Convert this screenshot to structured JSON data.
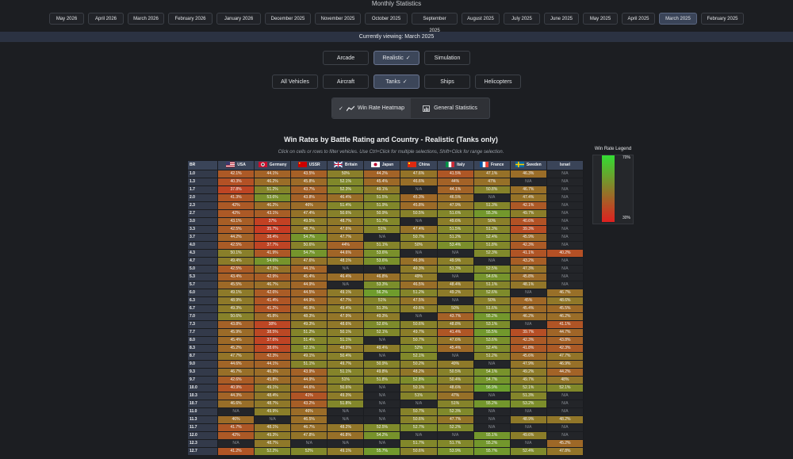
{
  "header": {
    "title": "Monthly Statistics",
    "viewing": "Currently viewing: March 2025"
  },
  "months": [
    "May 2026",
    "April 2026",
    "March 2026",
    "February 2026",
    "January 2026",
    "December 2025",
    "November 2025",
    "October 2025",
    "September 2025",
    "August 2025",
    "July 2025",
    "June 2025",
    "May 2025",
    "April 2025",
    "March 2025",
    "February 2025"
  ],
  "selected_month": "March 2025",
  "modes": [
    {
      "label": "Arcade",
      "active": false
    },
    {
      "label": "Realistic",
      "active": true
    },
    {
      "label": "Simulation",
      "active": false
    }
  ],
  "vehicles": [
    {
      "label": "All Vehicles",
      "active": false
    },
    {
      "label": "Aircraft",
      "active": false
    },
    {
      "label": "Tanks",
      "active": true
    },
    {
      "label": "Ships",
      "active": false
    },
    {
      "label": "Helicopters",
      "active": false
    }
  ],
  "views": [
    {
      "label": "Win Rate Heatmap",
      "active": true,
      "icon": "trend-line-icon"
    },
    {
      "label": "General Statistics",
      "active": false,
      "icon": "bar-chart-icon"
    }
  ],
  "chart": {
    "title": "Win Rates by Battle Rating and Country - Realistic (Tanks only)",
    "subtitle": "Click on cells or rows to filter vehicles. Use Ctrl+Click for multiple selections, Shift+Click for range selection."
  },
  "legend": {
    "title": "Win Rate Legend",
    "max_label": "70%",
    "min_label": "30%",
    "high_color": "#33dd33",
    "low_color": "#e02020"
  },
  "table": {
    "br_header": "BR",
    "countries": [
      {
        "name": "USA",
        "flag": "flag-usa-icon"
      },
      {
        "name": "Germany",
        "flag": "flag-germany-icon"
      },
      {
        "name": "USSR",
        "flag": "flag-ussr-icon"
      },
      {
        "name": "Britain",
        "flag": "flag-britain-icon"
      },
      {
        "name": "Japan",
        "flag": "flag-japan-icon"
      },
      {
        "name": "China",
        "flag": "flag-china-icon"
      },
      {
        "name": "Italy",
        "flag": "flag-italy-icon"
      },
      {
        "name": "France",
        "flag": "flag-france-icon"
      },
      {
        "name": "Sweden",
        "flag": "flag-sweden-icon"
      },
      {
        "name": "Israel",
        "flag": "flag-israel-icon"
      }
    ],
    "rows": [
      {
        "br": "1.0",
        "v": [
          "42.1%",
          "44.1%",
          "43.5%",
          "50%",
          "44.2%",
          "47.6%",
          "41.5%",
          "47.1%",
          "46.3%",
          "N/A"
        ]
      },
      {
        "br": "1.3",
        "v": [
          "40.3%",
          "46.2%",
          "45.8%",
          "52.1%",
          "45.4%",
          "46.6%",
          "44%",
          "47%",
          "N/A",
          "N/A"
        ]
      },
      {
        "br": "1.7",
        "v": [
          "37.8%",
          "51.2%",
          "43.7%",
          "52.3%",
          "49.1%",
          "N/A",
          "44.1%",
          "50.8%",
          "46.7%",
          "N/A"
        ]
      },
      {
        "br": "2.0",
        "v": [
          "41.3%",
          "53.6%",
          "43.8%",
          "46.4%",
          "51.5%",
          "45.3%",
          "46.5%",
          "N/A",
          "47.4%",
          "N/A"
        ]
      },
      {
        "br": "2.3",
        "v": [
          "42%",
          "46.2%",
          "46%",
          "51.4%",
          "51.9%",
          "45.8%",
          "47.9%",
          "51.3%",
          "42.1%",
          "N/A"
        ]
      },
      {
        "br": "2.7",
        "v": [
          "42%",
          "43.1%",
          "47.4%",
          "50.6%",
          "50.9%",
          "50.5%",
          "51.6%",
          "55.3%",
          "49.7%",
          "N/A"
        ]
      },
      {
        "br": "3.0",
        "v": [
          "43.1%",
          "37%",
          "49.5%",
          "48.7%",
          "51.7%",
          "N/A",
          "49.6%",
          "50%",
          "40.6%",
          "N/A"
        ]
      },
      {
        "br": "3.3",
        "v": [
          "42.5%",
          "35.7%",
          "48.7%",
          "47.6%",
          "51%",
          "47.4%",
          "51.5%",
          "51.3%",
          "39.3%",
          "N/A"
        ]
      },
      {
        "br": "3.7",
        "v": [
          "44.2%",
          "38.4%",
          "54.7%",
          "47.7%",
          "N/A",
          "50.7%",
          "51.2%",
          "52.4%",
          "45.9%",
          "N/A"
        ]
      },
      {
        "br": "4.0",
        "v": [
          "42.5%",
          "37.7%",
          "50.6%",
          "44%",
          "51.1%",
          "50%",
          "53.4%",
          "51.8%",
          "42.3%",
          "N/A"
        ]
      },
      {
        "br": "4.3",
        "v": [
          "50.1%",
          "41.9%",
          "54.7%",
          "44.6%",
          "53.6%",
          "N/A",
          "N/A",
          "52.3%",
          "41.1%",
          "40.2%"
        ]
      },
      {
        "br": "4.7",
        "v": [
          "49.4%",
          "54.6%",
          "47.6%",
          "48.1%",
          "53.6%",
          "46.9%",
          "49.9%",
          "N/A",
          "43.2%",
          "N/A"
        ]
      },
      {
        "br": "5.0",
        "v": [
          "42.5%",
          "47.1%",
          "44.1%",
          "N/A",
          "N/A",
          "49.3%",
          "51.3%",
          "52.5%",
          "47.3%",
          "N/A"
        ]
      },
      {
        "br": "5.3",
        "v": [
          "43.4%",
          "42.9%",
          "45.4%",
          "46.4%",
          "46.8%",
          "49%",
          "N/A",
          "54.6%",
          "45.8%",
          "N/A"
        ]
      },
      {
        "br": "5.7",
        "v": [
          "45.5%",
          "46.7%",
          "44.9%",
          "N/A",
          "53.3%",
          "46.5%",
          "48.4%",
          "51.1%",
          "48.1%",
          "N/A"
        ]
      },
      {
        "br": "6.0",
        "v": [
          "49.1%",
          "42.6%",
          "44.5%",
          "49.1%",
          "56.2%",
          "51.2%",
          "49.2%",
          "52.6%",
          "N/A",
          "46.7%"
        ]
      },
      {
        "br": "6.3",
        "v": [
          "48.9%",
          "41.4%",
          "44.9%",
          "47.7%",
          "51%",
          "47.5%",
          "N/A",
          "50%",
          "45%",
          "48.6%"
        ]
      },
      {
        "br": "6.7",
        "v": [
          "49.3%",
          "41.2%",
          "46.9%",
          "49.4%",
          "51.3%",
          "49.6%",
          "50%",
          "51.6%",
          "45.4%",
          "45.5%"
        ]
      },
      {
        "br": "7.0",
        "v": [
          "50.6%",
          "45.8%",
          "48.3%",
          "47.9%",
          "49.3%",
          "N/A",
          "43.7%",
          "55.2%",
          "46.2%",
          "46.2%"
        ]
      },
      {
        "br": "7.3",
        "v": [
          "43.8%",
          "38%",
          "49.3%",
          "48.6%",
          "52.6%",
          "50.6%",
          "48.8%",
          "53.1%",
          "N/A",
          "41.1%"
        ]
      },
      {
        "br": "7.7",
        "v": [
          "45.9%",
          "38.5%",
          "51.2%",
          "50.1%",
          "52.1%",
          "49.7%",
          "41.4%",
          "55.5%",
          "39.7%",
          "44.7%"
        ]
      },
      {
        "br": "8.0",
        "v": [
          "45.4%",
          "37.6%",
          "51.4%",
          "51.1%",
          "N/A",
          "50.7%",
          "47.6%",
          "53.6%",
          "42.3%",
          "43.8%"
        ]
      },
      {
        "br": "8.3",
        "v": [
          "45.2%",
          "38.6%",
          "52.1%",
          "48.9%",
          "49.4%",
          "52%",
          "45.4%",
          "52.4%",
          "41.8%",
          "42.3%"
        ]
      },
      {
        "br": "8.7",
        "v": [
          "47.7%",
          "42.3%",
          "49.1%",
          "50.4%",
          "N/A",
          "52.1%",
          "N/A",
          "51.2%",
          "45.6%",
          "47.7%"
        ]
      },
      {
        "br": "9.0",
        "v": [
          "44.6%",
          "44.1%",
          "51.1%",
          "49.7%",
          "50.9%",
          "50.2%",
          "49%",
          "N/A",
          "47.9%",
          "46.9%"
        ]
      },
      {
        "br": "9.3",
        "v": [
          "46.7%",
          "46.3%",
          "43.9%",
          "51.1%",
          "49.8%",
          "48.2%",
          "50.5%",
          "54.1%",
          "49.2%",
          "44.2%"
        ]
      },
      {
        "br": "9.7",
        "v": [
          "42.6%",
          "45.8%",
          "44.9%",
          "51%",
          "51.8%",
          "52.8%",
          "50.4%",
          "54.7%",
          "49.7%",
          "48%"
        ]
      },
      {
        "br": "10.0",
        "v": [
          "40.9%",
          "49.1%",
          "44.6%",
          "50.6%",
          "N/A",
          "50.1%",
          "48.6%",
          "56.9%",
          "52.1%",
          "52.1%"
        ]
      },
      {
        "br": "10.3",
        "v": [
          "44.3%",
          "48.4%",
          "41%",
          "49.3%",
          "N/A",
          "51%",
          "47%",
          "N/A",
          "51.3%",
          "N/A"
        ]
      },
      {
        "br": "10.7",
        "v": [
          "46.6%",
          "48.7%",
          "43.2%",
          "51.8%",
          "N/A",
          "N/A",
          "51%",
          "55.2%",
          "53.2%",
          "N/A"
        ]
      },
      {
        "br": "11.0",
        "v": [
          "N/A",
          "49.9%",
          "46%",
          "N/A",
          "N/A",
          "50.7%",
          "52.3%",
          "N/A",
          "N/A",
          "N/A"
        ]
      },
      {
        "br": "11.3",
        "v": [
          "46%",
          "N/A",
          "46.5%",
          "N/A",
          "N/A",
          "50.6%",
          "47.7%",
          "N/A",
          "48.9%",
          "48.2%"
        ]
      },
      {
        "br": "11.7",
        "v": [
          "41.7%",
          "48.1%",
          "46.7%",
          "48.2%",
          "52.5%",
          "52.7%",
          "52.2%",
          "N/A",
          "N/A",
          "N/A"
        ]
      },
      {
        "br": "12.0",
        "v": [
          "42%",
          "49.3%",
          "47.8%",
          "46.8%",
          "54.2%",
          "N/A",
          "N/A",
          "55.1%",
          "49.6%",
          "N/A"
        ]
      },
      {
        "br": "12.3",
        "v": [
          "N/A",
          "48.7%",
          "N/A",
          "N/A",
          "N/A",
          "51.7%",
          "51.7%",
          "55.2%",
          "N/A",
          "45.2%"
        ]
      },
      {
        "br": "12.7",
        "v": [
          "41.2%",
          "52.2%",
          "52%",
          "49.1%",
          "55.7%",
          "50.6%",
          "53.9%",
          "55.7%",
          "52.4%",
          "47.8%"
        ]
      }
    ]
  }
}
